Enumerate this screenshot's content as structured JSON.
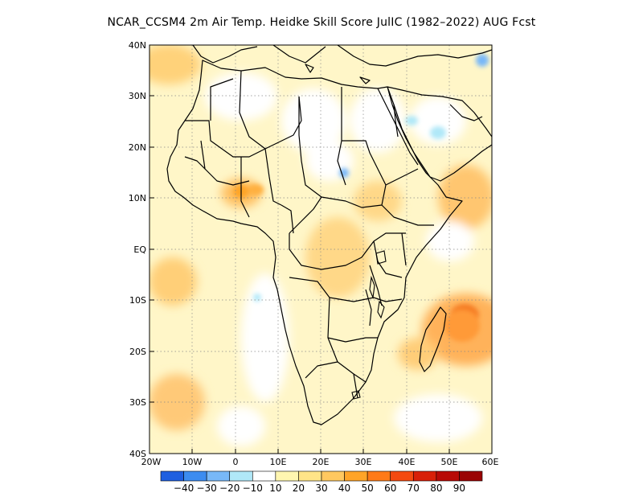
{
  "title": "NCAR_CCSM4  2m Air Temp. Heidke Skill Score JulIC (1982–2022) AUG Fcst",
  "axes": {
    "lat_labels": [
      "40N",
      "30N",
      "20N",
      "10N",
      "EQ",
      "10S",
      "20S",
      "30S",
      "40S"
    ],
    "lon_labels": [
      "20W",
      "10W",
      "0",
      "10E",
      "20E",
      "30E",
      "40E",
      "50E",
      "60E"
    ],
    "lat_range": [
      -40,
      40
    ],
    "lon_range": [
      -20,
      60
    ],
    "grid": "dotted"
  },
  "colorbar": {
    "labels": [
      "−40",
      "−30",
      "−20",
      "−10",
      "10",
      "20",
      "30",
      "40",
      "50",
      "60",
      "70",
      "80",
      "90"
    ],
    "colors": [
      "#1f5fe0",
      "#3c8cf0",
      "#78b8f8",
      "#b0e8f8",
      "#ffffff",
      "#fff6b0",
      "#ffe488",
      "#ffc860",
      "#ffa428",
      "#ff7a18",
      "#f44a10",
      "#d82008",
      "#b80a06",
      "#9a0404"
    ]
  },
  "colors": {
    "land_outline": "#000000",
    "ocean_background": "#ffffff"
  }
}
